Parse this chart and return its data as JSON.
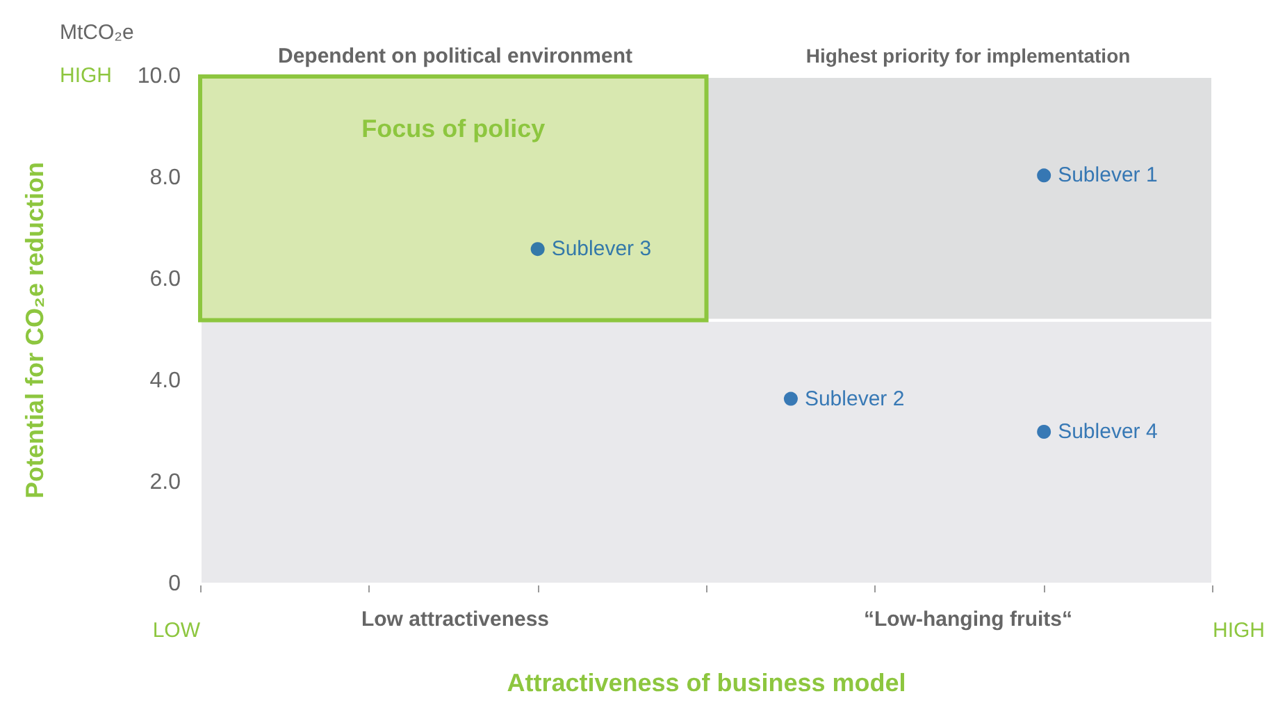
{
  "chart_data": {
    "type": "scatter",
    "xlabel": "Attractiveness of business model",
    "ylabel": "Potential for CO₂e reduction",
    "categories": [
      "LOW",
      null,
      null,
      null,
      null,
      null,
      null,
      null,
      null,
      null,
      null,
      null,
      "HIGH"
    ],
    "ylim": [
      0,
      10
    ],
    "yticks": [
      0,
      {
        "value": 2,
        "label": "2.0"
      },
      {
        "value": 4,
        "label": "4.0"
      },
      {
        "value": 6,
        "label": "6.0"
      },
      {
        "value": 8,
        "label": "8.0"
      },
      {
        "value": 10,
        "label": "10.0"
      }
    ],
    "series": [
      {
        "name": "Sublever 1",
        "color": "#0b5ca8",
        "values": [
          null,
          null,
          null,
          null,
          null,
          null,
          null,
          null,
          null,
          null,
          8.05,
          null,
          null
        ]
      },
      {
        "name": "Sublever 2",
        "color": "#0b5ca8",
        "values": [
          null,
          null,
          null,
          null,
          null,
          null,
          null,
          3.65,
          null,
          null,
          null,
          null,
          null
        ]
      },
      {
        "name": "Sublever 3",
        "color": "#0b5ca8",
        "values": [
          null,
          null,
          null,
          null,
          6.6,
          null,
          null,
          null,
          null,
          null,
          null,
          null,
          null
        ]
      },
      {
        "name": "Sublever 4",
        "color": "#0b5ca8",
        "values": [
          null,
          null,
          null,
          null,
          null,
          null,
          null,
          null,
          null,
          null,
          3.0,
          null,
          null
        ]
      }
    ],
    "bands": [
      {
        "axis": "y",
        "from": 0,
        "to": 5.2,
        "color": "#e9e9ec"
      },
      {
        "axis": "y",
        "from": 5.2,
        "to": 10,
        "color": "#dedfe0"
      },
      {
        "axis": "y",
        "from": 5.2,
        "to": 10,
        "color": "#d8e8b0",
        "label": "Focus of policy"
      }
    ],
    "annotations": [
      "Dependent on political environment",
      "Highest priority for implementation",
      "Low attractiveness",
      "“Low-hanging fruits“",
      "HIGH",
      "MtCO₂e"
    ],
    "marker": "circle",
    "legend": false
  }
}
